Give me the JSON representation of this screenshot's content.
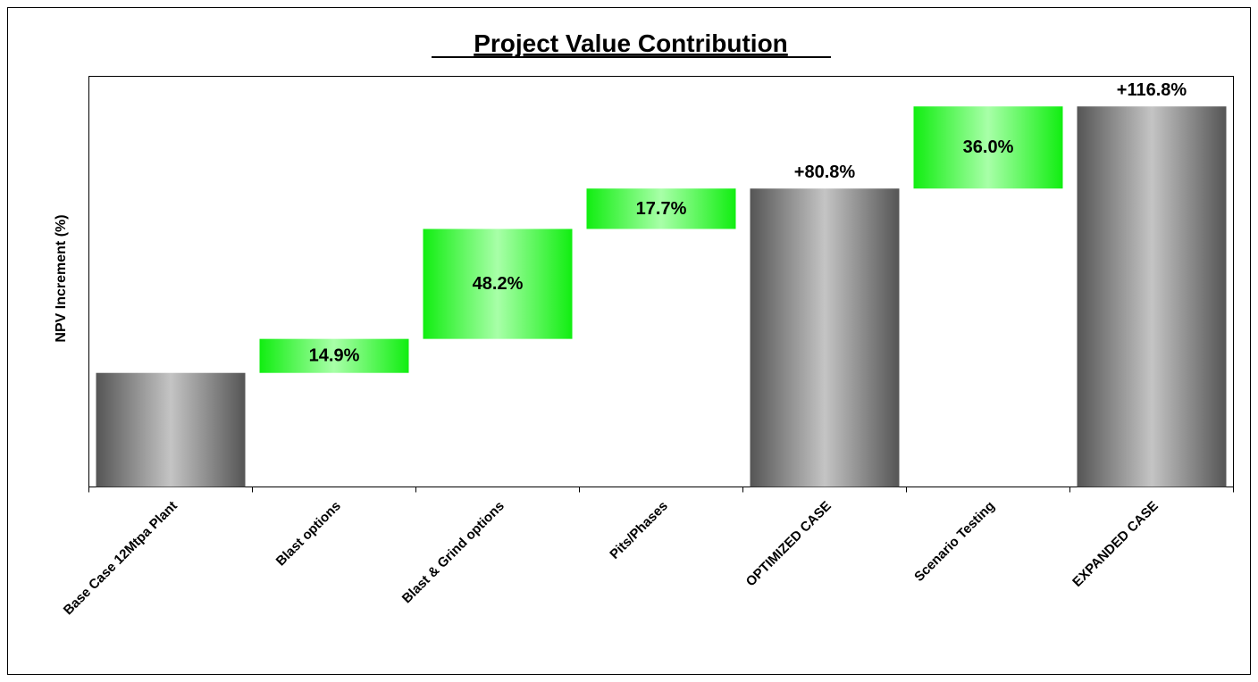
{
  "chart_data": {
    "type": "waterfall",
    "title": "Project Value Contribution",
    "y_label": "NPV Increment (%)",
    "categories": [
      "Base Case 12Mtpa Plant",
      "Blast options",
      "Blast & Grind options",
      "Pits/Phases",
      "OPTIMIZED CASE",
      "Scenario Testing",
      "EXPANDED CASE"
    ],
    "measures": [
      "absolute",
      "relative",
      "relative",
      "relative",
      "total",
      "relative",
      "total"
    ],
    "values": [
      50,
      14.9,
      48.2,
      17.7,
      80.8,
      36.0,
      116.8
    ],
    "value_labels": [
      null,
      "14.9%",
      "48.2%",
      "17.7%",
      "+80.8%",
      "36.0%",
      "+116.8%"
    ],
    "colors": {
      "total": "#555555",
      "increase": "#11ee11"
    },
    "ylim": [
      0,
      180
    ]
  }
}
